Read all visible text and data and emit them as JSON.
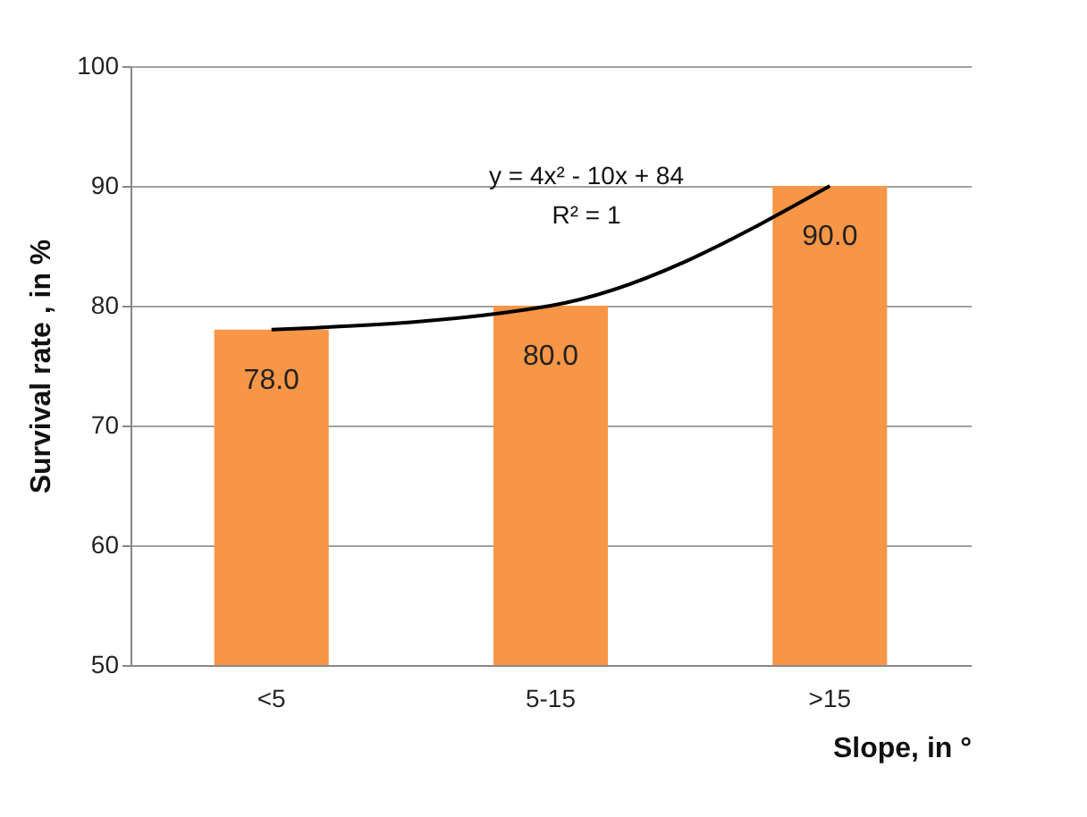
{
  "chart_data": {
    "type": "bar",
    "xlabel": "Slope,  in °",
    "ylabel": "Survival rate , in %",
    "categories": [
      "<5",
      "5-15",
      ">15"
    ],
    "series": [
      {
        "color": "#f79646",
        "values": [
          78,
          80,
          90
        ],
        "value_labels": [
          "78.0",
          "80.0",
          "90.0"
        ]
      },
      {
        "type": "line",
        "color": "#000000",
        "values": [
          78,
          80,
          90
        ]
      }
    ],
    "ylim": [
      50,
      100
    ],
    "yticks": [
      50,
      60,
      70,
      80,
      90,
      100
    ],
    "grid": "y",
    "annotations": [
      "y = 4x² - 10x + 84",
      "R² = 1"
    ]
  }
}
